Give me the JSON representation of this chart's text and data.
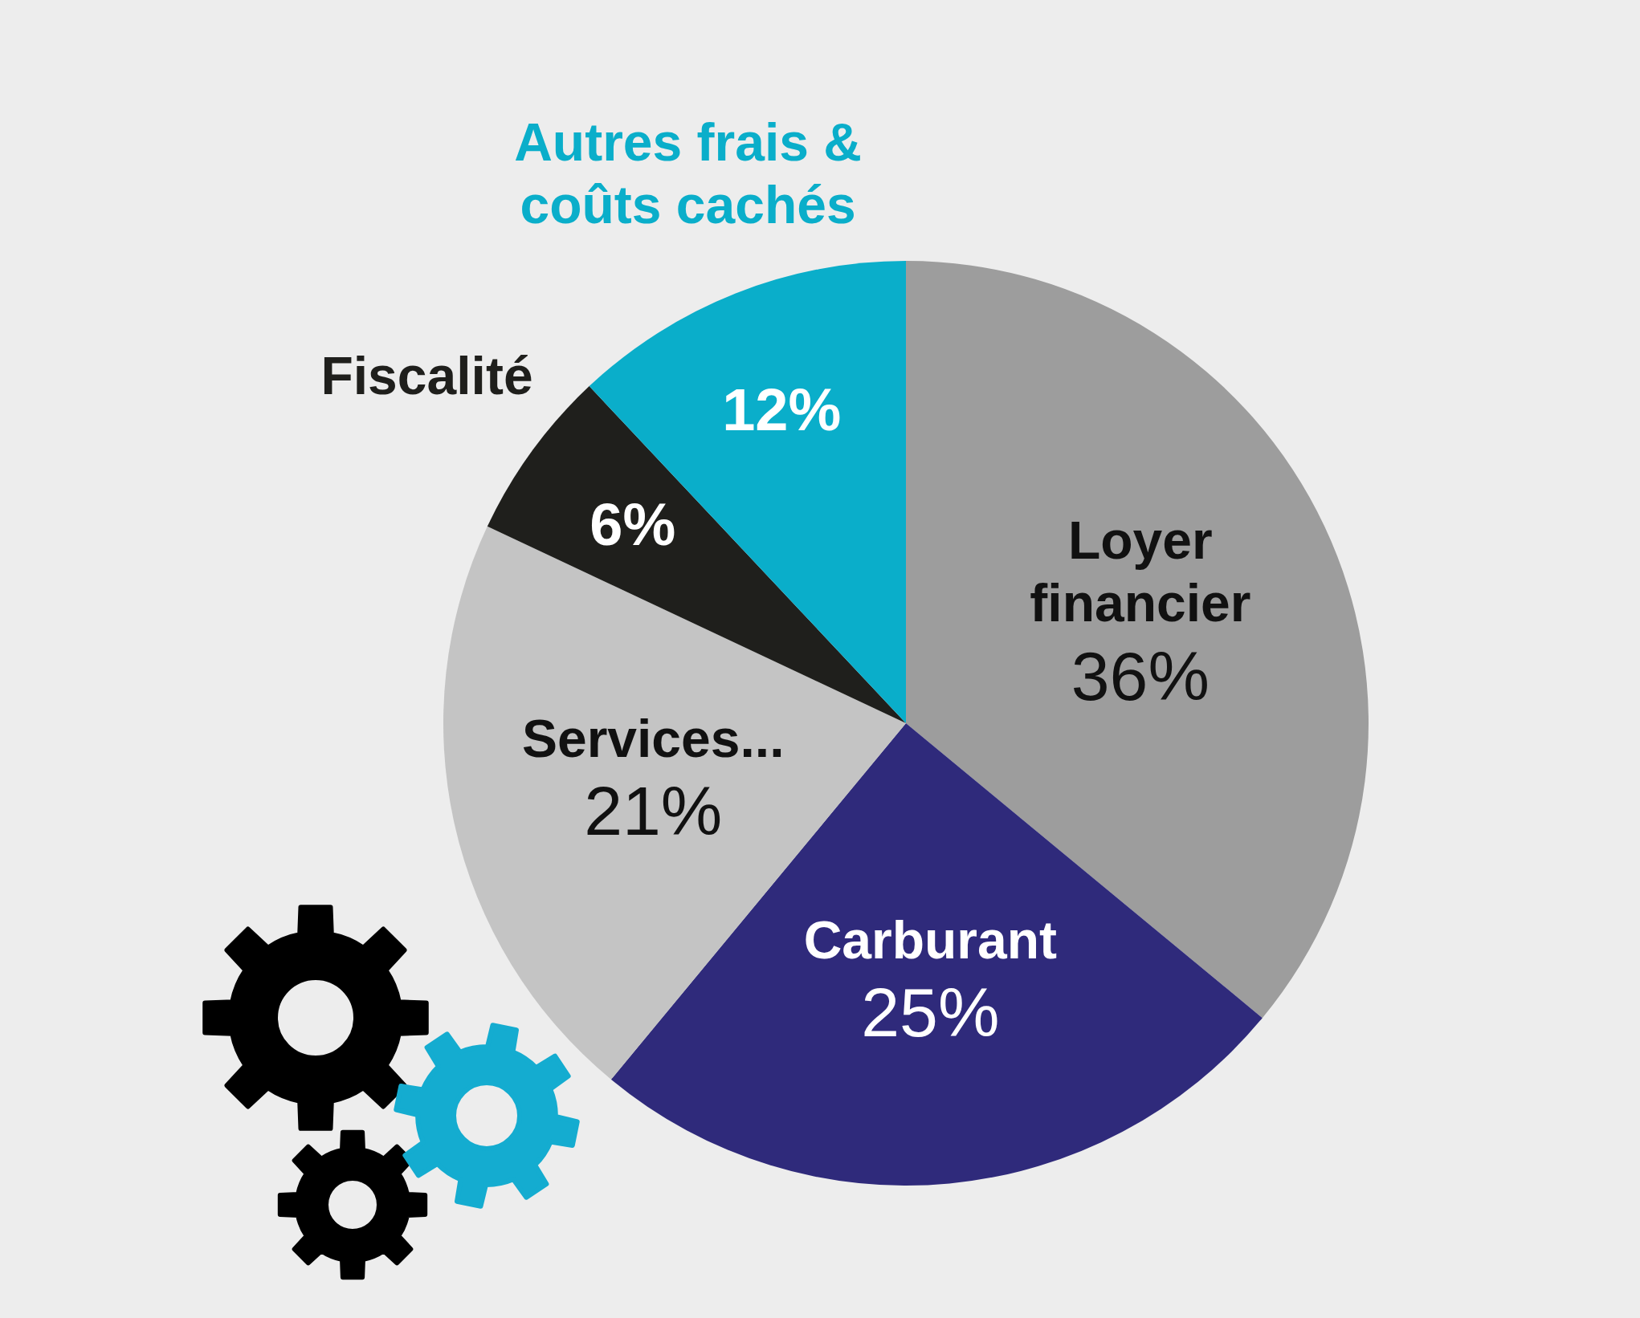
{
  "chart_data": {
    "type": "pie",
    "categories": [
      "Loyer financier",
      "Carburant",
      "Services...",
      "Fiscalité",
      "Autres frais & coûts cachés"
    ],
    "values": [
      36,
      25,
      21,
      6,
      12
    ],
    "colors": [
      "#9d9d9d",
      "#2f2a7b",
      "#c4c4c4",
      "#1f1f1c",
      "#0aaeca"
    ],
    "value_labels": [
      "36%",
      "25%",
      "21%",
      "6%",
      "12%"
    ]
  }
}
